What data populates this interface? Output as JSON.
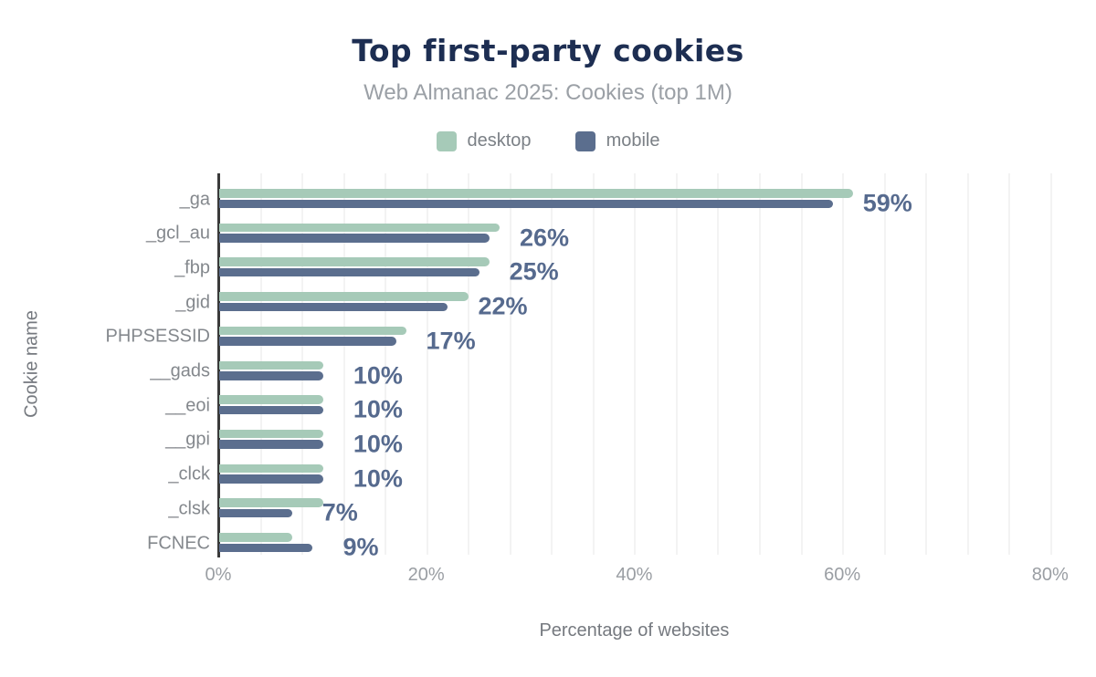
{
  "header": {
    "title": "Top first-party cookies",
    "subtitle": "Web Almanac 2025: Cookies (top 1M)"
  },
  "legend": [
    {
      "label": "desktop",
      "color": "#a6cab8"
    },
    {
      "label": "mobile",
      "color": "#5b6e8e"
    }
  ],
  "chart_data": {
    "type": "bar",
    "orientation": "horizontal",
    "title": "Top first-party cookies",
    "subtitle": "Web Almanac 2025: Cookies (top 1M)",
    "xlabel": "Percentage of websites",
    "ylabel": "Cookie name",
    "xlim": [
      0,
      82
    ],
    "grid": {
      "step_pct": 4,
      "color": "#f3f3f3",
      "horizontal": false
    },
    "legend_position": "top",
    "categories": [
      "_ga",
      "_gcl_au",
      "_fbp",
      "_gid",
      "PHPSESSID",
      "__gads",
      "__eoi",
      "__gpi",
      "_clck",
      "_clsk",
      "FCNEC"
    ],
    "series": [
      {
        "name": "desktop",
        "color": "#a6cab8",
        "values": [
          61,
          27,
          26,
          24,
          18,
          10,
          10,
          10,
          10,
          10,
          7
        ]
      },
      {
        "name": "mobile",
        "color": "#5b6e8e",
        "values": [
          59,
          26,
          25,
          22,
          17,
          10,
          10,
          10,
          10,
          7,
          9
        ]
      }
    ],
    "value_labels": [
      "59%",
      "26%",
      "25%",
      "22%",
      "17%",
      "10%",
      "10%",
      "10%",
      "10%",
      "7%",
      "9%"
    ],
    "x_ticks": [
      {
        "value": 0,
        "label": "0%"
      },
      {
        "value": 20,
        "label": "20%"
      },
      {
        "value": 40,
        "label": "40%"
      },
      {
        "value": 60,
        "label": "60%"
      },
      {
        "value": 80,
        "label": "80%"
      }
    ],
    "colors": {
      "title": "#1d2e52",
      "subtitle": "#9ba0a6",
      "axis_line": "#3a3a3a",
      "category_label": "#84888d",
      "tick_label": "#9a9ea3",
      "axis_title": "#75797f",
      "value_label": "#566a8e"
    }
  }
}
